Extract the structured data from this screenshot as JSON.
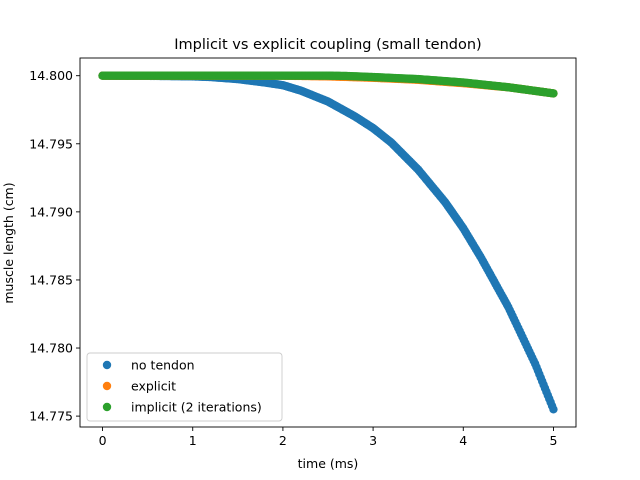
{
  "chart_data": {
    "type": "scatter",
    "title": "Implicit vs explicit coupling (small tendon)",
    "xlabel": "time (ms)",
    "ylabel": "muscle length (cm)",
    "xlim": [
      -0.25,
      5.25
    ],
    "ylim": [
      14.7742,
      14.8013
    ],
    "xticks": [
      0,
      1,
      2,
      3,
      4,
      5
    ],
    "xtick_labels": [
      "0",
      "1",
      "2",
      "3",
      "4",
      "5"
    ],
    "yticks": [
      14.775,
      14.78,
      14.785,
      14.79,
      14.795,
      14.8
    ],
    "ytick_labels": [
      "14.775",
      "14.780",
      "14.785",
      "14.790",
      "14.795",
      "14.800"
    ],
    "grid": false,
    "legend_position": "lower-left",
    "series": [
      {
        "name": "no tendon",
        "color": "#1f77b4",
        "x": [
          0,
          0.5,
          1.0,
          1.2,
          1.5,
          1.8,
          2.0,
          2.2,
          2.5,
          2.8,
          3.0,
          3.2,
          3.5,
          3.8,
          4.0,
          4.2,
          4.5,
          4.8,
          5.0
        ],
        "y": [
          14.8,
          14.79999,
          14.79995,
          14.7999,
          14.79975,
          14.7995,
          14.7993,
          14.7989,
          14.7981,
          14.797,
          14.79615,
          14.7951,
          14.7931,
          14.7907,
          14.7888,
          14.7866,
          14.783,
          14.7788,
          14.7755
        ]
      },
      {
        "name": "explicit",
        "color": "#ff7f0e",
        "x": [
          0,
          0.5,
          1.0,
          1.5,
          2.0,
          2.5,
          3.0,
          3.5,
          4.0,
          4.5,
          5.0
        ],
        "y": [
          14.8,
          14.8,
          14.8,
          14.8,
          14.8,
          14.79995,
          14.79985,
          14.7997,
          14.79945,
          14.79915,
          14.7987
        ]
      },
      {
        "name": "implicit (2 iterations)",
        "color": "#2ca02c",
        "x": [
          0,
          0.5,
          1.0,
          1.5,
          2.0,
          2.3,
          2.5,
          2.7,
          3.0,
          3.5,
          4.0,
          4.5,
          5.0
        ],
        "y": [
          14.8,
          14.8,
          14.8,
          14.8,
          14.8,
          14.8,
          14.8,
          14.79998,
          14.7999,
          14.79975,
          14.7995,
          14.79915,
          14.7987
        ]
      }
    ]
  }
}
